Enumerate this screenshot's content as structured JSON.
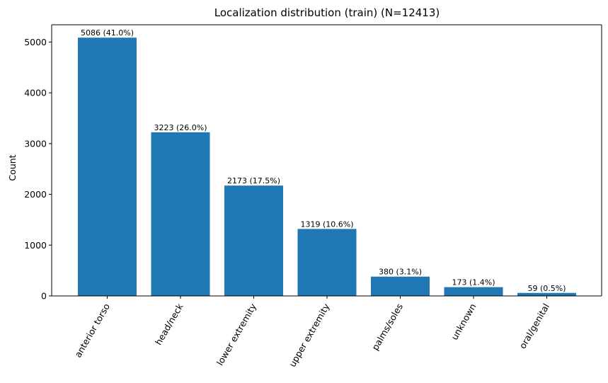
{
  "chart_data": {
    "type": "bar",
    "title": "Localization distribution (train) (N=12413)",
    "xlabel": "",
    "ylabel": "Count",
    "categories": [
      "anterior torso",
      "head/neck",
      "lower extremity",
      "upper extremity",
      "palms/soles",
      "unknown",
      "oral/genital"
    ],
    "values": [
      5086,
      3223,
      2173,
      1319,
      380,
      173,
      59
    ],
    "data_labels": [
      "5086 (41.0%)",
      "3223 (26.0%)",
      "2173 (17.5%)",
      "1319 (10.6%)",
      "380 (3.1%)",
      "173 (1.4%)",
      "59 (0.5%)"
    ],
    "yticks": [
      0,
      1000,
      2000,
      3000,
      4000,
      5000
    ],
    "ylim": [
      0,
      5340
    ],
    "grid": false,
    "bar_color": "#1f77b4"
  }
}
